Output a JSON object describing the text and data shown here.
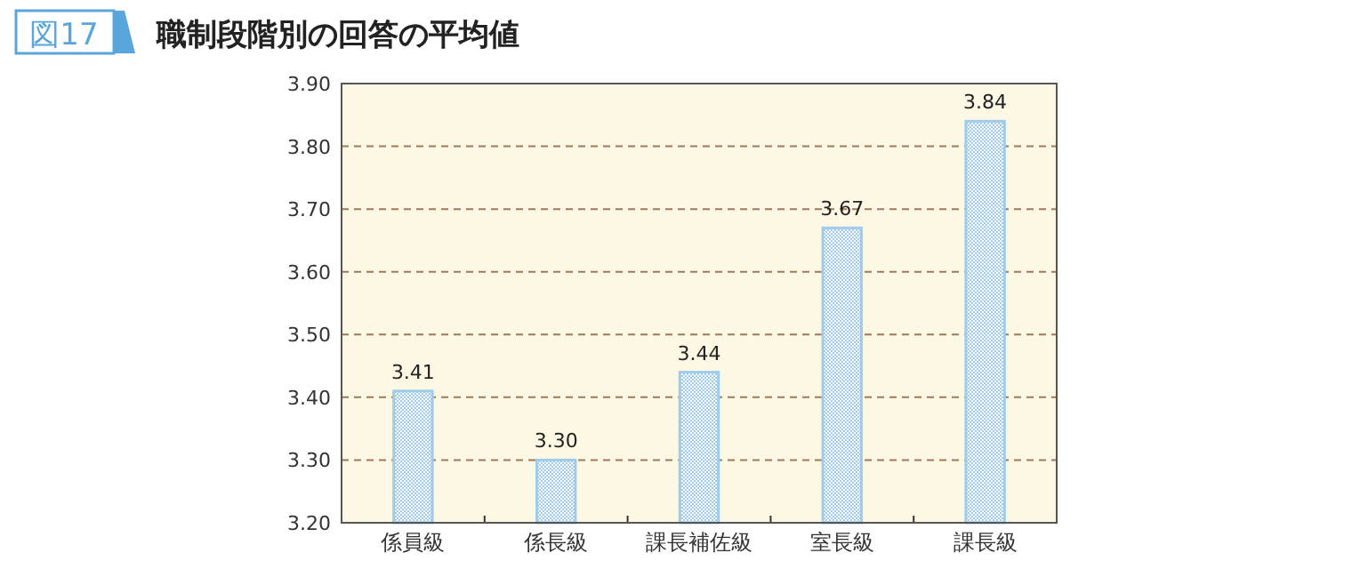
{
  "chart_data": {
    "type": "bar",
    "title": "職制段階別の回答の平均値",
    "annotations": [
      "図17"
    ],
    "categories": [
      "係員級",
      "係長級",
      "課長補佐級",
      "室長級",
      "課長級"
    ],
    "values": [
      3.41,
      3.3,
      3.44,
      3.67,
      3.84
    ],
    "value_labels": [
      "3.41",
      "3.30",
      "3.44",
      "3.67",
      "3.84"
    ],
    "color": "#9fcbec",
    "ylim": [
      3.2,
      3.9
    ],
    "yticks": [
      {
        "value": 3.2,
        "label": "3.20"
      },
      {
        "value": 3.3,
        "label": "3.30"
      },
      {
        "value": 3.4,
        "label": "3.40"
      },
      {
        "value": 3.5,
        "label": "3.50"
      },
      {
        "value": 3.6,
        "label": "3.60"
      },
      {
        "value": 3.7,
        "label": "3.70"
      },
      {
        "value": 3.8,
        "label": "3.80"
      },
      {
        "value": 3.9,
        "label": "3.90"
      }
    ],
    "grid": "y"
  }
}
